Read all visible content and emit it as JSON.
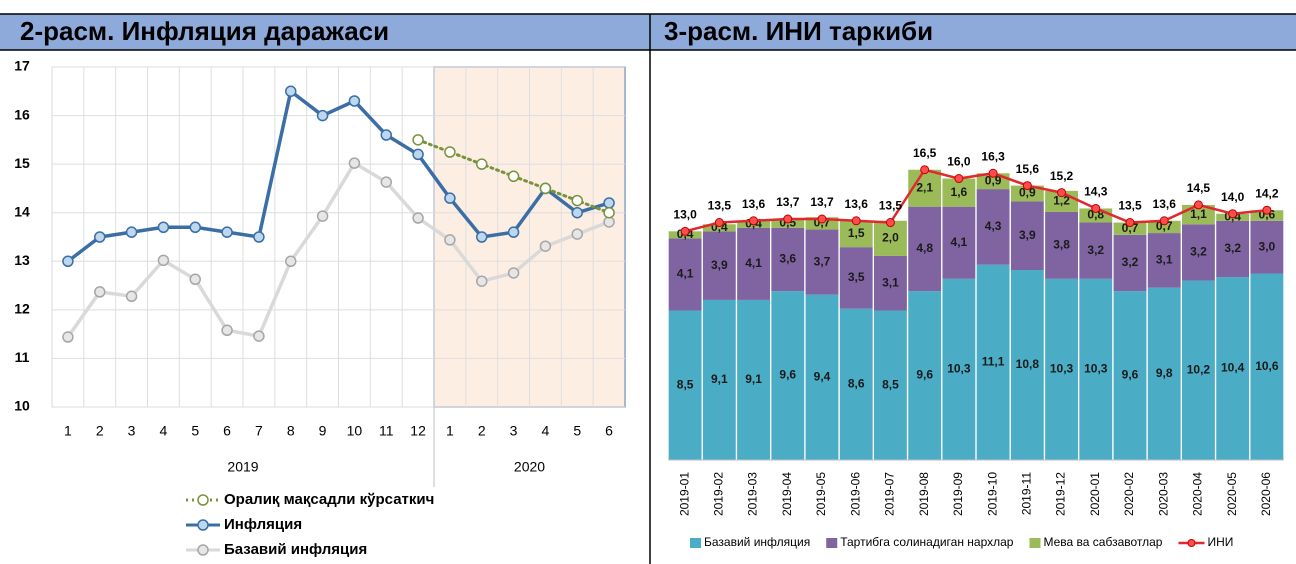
{
  "chart_data": [
    {
      "type": "line",
      "title": "2-расм. Инфляция даражаси",
      "categories": [
        1,
        2,
        3,
        4,
        5,
        6,
        7,
        8,
        9,
        10,
        11,
        12,
        1,
        2,
        3,
        4,
        5,
        6
      ],
      "x_groups": [
        "2019",
        "2020"
      ],
      "ylim": [
        10,
        17
      ],
      "yticks": [
        10,
        11,
        12,
        13,
        14,
        15,
        16,
        17
      ],
      "grid": true,
      "series": [
        {
          "name": "Оралиқ мақсадли кўрсаткич",
          "color": "#77933c",
          "line_style": "dotted",
          "marker_fill": "#ffffff",
          "values": [
            null,
            null,
            null,
            null,
            null,
            null,
            null,
            null,
            null,
            null,
            null,
            15.5,
            15.25,
            15.0,
            14.75,
            14.5,
            14.25,
            14.0
          ]
        },
        {
          "name": "Инфляция",
          "color": "#3b6ea5",
          "line_style": "solid",
          "marker_fill": "#bdd7ee",
          "values": [
            13.0,
            13.5,
            13.6,
            13.7,
            13.7,
            13.6,
            13.5,
            16.5,
            16.0,
            16.3,
            15.6,
            15.2,
            14.3,
            13.5,
            13.6,
            14.5,
            14.0,
            14.2
          ]
        },
        {
          "name": "Базавий инфляция",
          "color": "#d9d9d9",
          "line_style": "solid",
          "marker_fill": "#e7e6e6",
          "values": [
            11.44,
            12.37,
            12.28,
            13.02,
            12.63,
            11.58,
            11.46,
            13.0,
            13.93,
            15.02,
            14.63,
            13.89,
            13.44,
            12.59,
            12.76,
            13.31,
            13.56,
            13.81
          ]
        }
      ]
    },
    {
      "type": "bar",
      "stacked": true,
      "title": "3-расм. ИНИ таркиби",
      "categories": [
        "2019-01",
        "2019-02",
        "2019-03",
        "2019-04",
        "2019-05",
        "2019-06",
        "2019-07",
        "2019-08",
        "2019-09",
        "2019-10",
        "2019-11",
        "2019-12",
        "2020-01",
        "2020-02",
        "2020-03",
        "2020-04",
        "2020-05",
        "2020-06"
      ],
      "ylim": [
        0,
        22
      ],
      "series": [
        {
          "name": "Базавий инфляция",
          "color": "#4bacc6",
          "values": [
            8.5,
            9.1,
            9.1,
            9.6,
            9.4,
            8.6,
            8.5,
            9.6,
            10.3,
            11.1,
            10.8,
            10.3,
            10.3,
            9.6,
            9.8,
            10.2,
            10.4,
            10.6
          ],
          "value_labels": [
            "8,5",
            "9,1",
            "9,1",
            "9,6",
            "9,4",
            "8,6",
            "8,5",
            "9,6",
            "10,3",
            "11,1",
            "10,8",
            "10,3",
            "10,3",
            "9,6",
            "9,8",
            "10,2",
            "10,4",
            "10,6"
          ]
        },
        {
          "name": "Тартибга солинадиган нархлар",
          "color": "#8064a2",
          "values": [
            4.1,
            3.9,
            4.1,
            3.6,
            3.7,
            3.5,
            3.1,
            4.8,
            4.1,
            4.3,
            3.9,
            3.8,
            3.2,
            3.2,
            3.1,
            3.2,
            3.2,
            3.0
          ],
          "value_labels": [
            "4,1",
            "3,9",
            "4,1",
            "3,6",
            "3,7",
            "3,5",
            "3,1",
            "4,8",
            "4,1",
            "4,3",
            "3,9",
            "3,8",
            "3,2",
            "3,2",
            "3,1",
            "3,2",
            "3,2",
            "3,0"
          ]
        },
        {
          "name": "Мева ва сабзавотлар",
          "color": "#9bbb59",
          "values": [
            0.4,
            0.4,
            0.4,
            0.5,
            0.7,
            1.5,
            2.0,
            2.1,
            1.6,
            0.9,
            0.9,
            1.2,
            0.8,
            0.7,
            0.7,
            1.1,
            0.4,
            0.6
          ],
          "value_labels": [
            "0,4",
            "0,4",
            "0,4",
            "0,5",
            "0,7",
            "1,5",
            "2,0",
            "2,1",
            "1,6",
            "0,9",
            "0,9",
            "1,2",
            "0,8",
            "0,7",
            "0,7",
            "1,1",
            "0,4",
            "0,6"
          ]
        },
        {
          "name": "ИНИ",
          "color": "#e0282e",
          "type": "line",
          "values": [
            13.0,
            13.5,
            13.6,
            13.7,
            13.7,
            13.6,
            13.5,
            16.5,
            16.0,
            16.3,
            15.6,
            15.2,
            14.3,
            13.5,
            13.6,
            14.5,
            14.0,
            14.2
          ],
          "value_labels": [
            "13,0",
            "13,5",
            "13,6",
            "13,7",
            "13,7",
            "13,6",
            "13,5",
            "16,5",
            "16,0",
            "16,3",
            "15,6",
            "15,2",
            "14,3",
            "13,5",
            "13,6",
            "14,5",
            "14,0",
            "14,2"
          ]
        }
      ]
    }
  ]
}
